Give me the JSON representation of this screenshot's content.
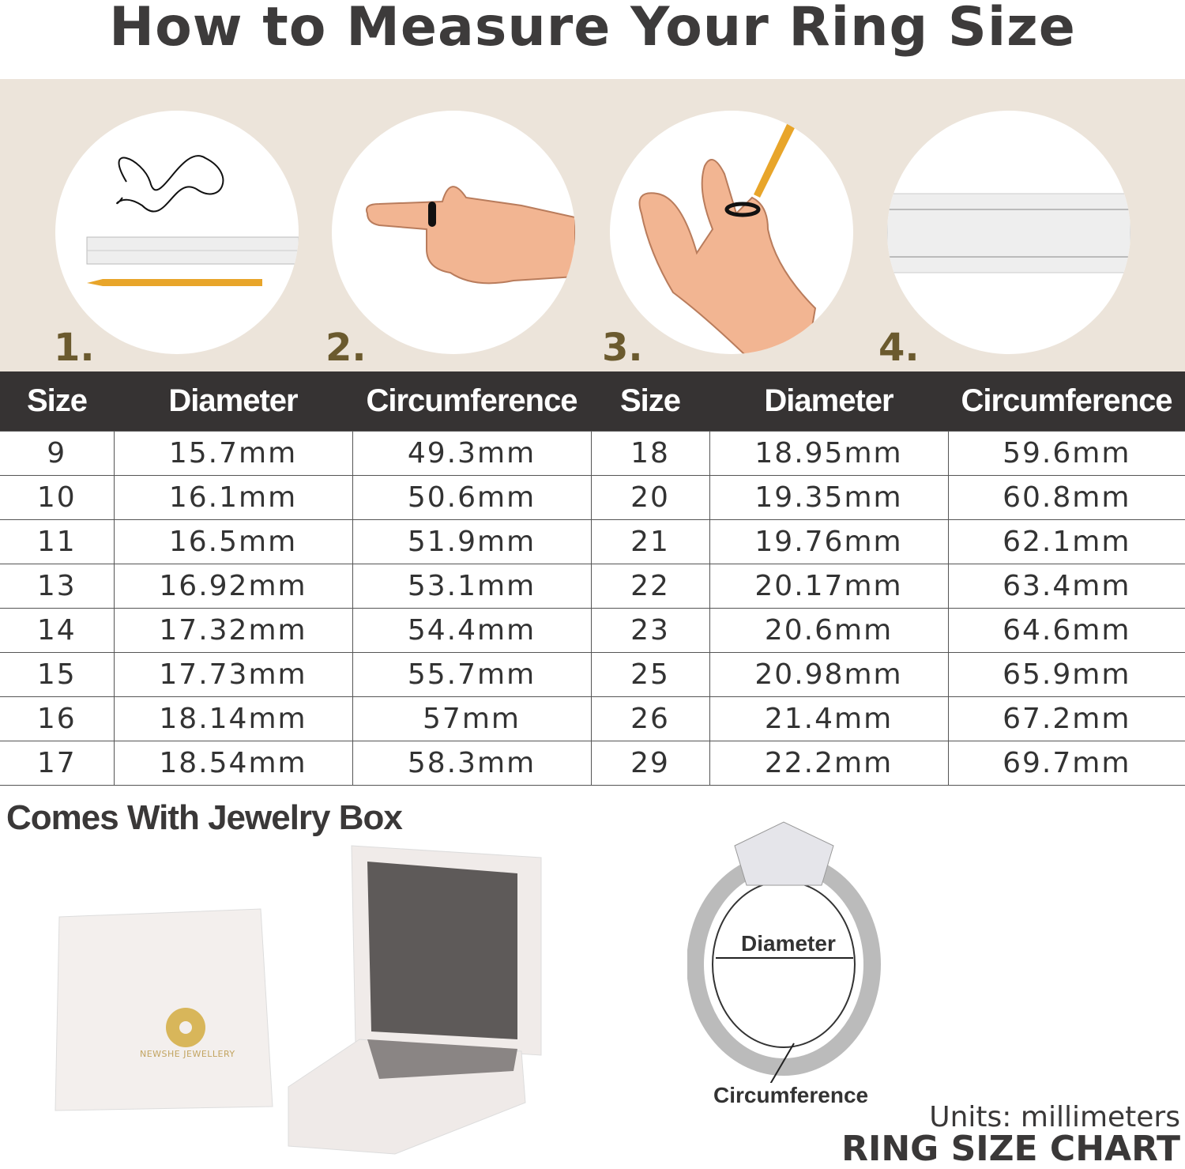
{
  "title": "How to Measure Your Ring Size",
  "steps": [
    "1.",
    "2.",
    "3.",
    "4."
  ],
  "table": {
    "headers": [
      "Size",
      "Diameter",
      "Circumference",
      "Size",
      "Diameter",
      "Circumference"
    ],
    "rows": [
      [
        "9",
        "15.7mm",
        "49.3mm",
        "18",
        "18.95mm",
        "59.6mm"
      ],
      [
        "10",
        "16.1mm",
        "50.6mm",
        "20",
        "19.35mm",
        "60.8mm"
      ],
      [
        "11",
        "16.5mm",
        "51.9mm",
        "21",
        "19.76mm",
        "62.1mm"
      ],
      [
        "13",
        "16.92mm",
        "53.1mm",
        "22",
        "20.17mm",
        "63.4mm"
      ],
      [
        "14",
        "17.32mm",
        "54.4mm",
        "23",
        "20.6mm",
        "64.6mm"
      ],
      [
        "15",
        "17.73mm",
        "55.7mm",
        "25",
        "20.98mm",
        "65.9mm"
      ],
      [
        "16",
        "18.14mm",
        "57mm",
        "26",
        "21.4mm",
        "67.2mm"
      ],
      [
        "17",
        "18.54mm",
        "58.3mm",
        "29",
        "22.2mm",
        "69.7mm"
      ]
    ]
  },
  "box_title": "Comes With Jewelry Box",
  "brand": "NEWSHE JEWELLERY",
  "ring_labels": {
    "diameter": "Diameter",
    "circumference": "Circumference"
  },
  "units": "Units: millimeters",
  "chart_title": "RING SIZE CHART",
  "colors": {
    "header_bg": "#363333",
    "band_bg": "#ece4da",
    "step_number": "#6b5a2e",
    "skin": "#f2b592",
    "pencil": "#e8a52a"
  }
}
